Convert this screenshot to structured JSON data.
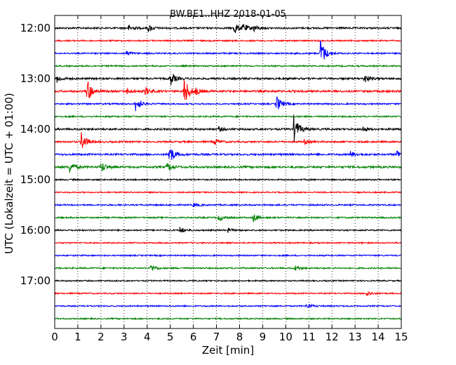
{
  "chart_data": {
    "type": "line",
    "title": "BW.BE1..HHZ 2018-01-05",
    "xlabel": "Zeit  [min]",
    "ylabel": "UTC (Lokalzeit = UTC + 01:00)",
    "xlim": [
      0,
      15
    ],
    "x_ticks": [
      "0",
      "1",
      "2",
      "3",
      "4",
      "5",
      "6",
      "7",
      "8",
      "9",
      "10",
      "11",
      "12",
      "13",
      "14",
      "15"
    ],
    "y_tick_labels": [
      "12:00",
      "13:00",
      "14:00",
      "15:00",
      "16:00",
      "17:00"
    ],
    "grid": "vertical dotted at each minute",
    "series_colors": [
      "#000000",
      "#ff0000",
      "#0000ff",
      "#008000"
    ],
    "traces": [
      {
        "start": "12:00",
        "color": "#000000",
        "noise": 1.2,
        "events": [
          {
            "t": 3.2,
            "amp": 4
          },
          {
            "t": 4.05,
            "amp": 5
          },
          {
            "t": 7.75,
            "amp": 10
          },
          {
            "t": 8.15,
            "amp": 6
          },
          {
            "t": 8.6,
            "amp": 5
          }
        ]
      },
      {
        "start": "12:15",
        "color": "#ff0000",
        "noise": 1.0,
        "events": []
      },
      {
        "start": "12:30",
        "color": "#0000ff",
        "noise": 1.0,
        "events": [
          {
            "t": 3.1,
            "amp": 3
          },
          {
            "t": 11.5,
            "amp": 22
          }
        ]
      },
      {
        "start": "12:45",
        "color": "#008000",
        "noise": 1.0,
        "events": []
      },
      {
        "start": "13:00",
        "color": "#000000",
        "noise": 1.3,
        "events": [
          {
            "t": 0.1,
            "amp": 5
          },
          {
            "t": 5.0,
            "amp": 10
          },
          {
            "t": 13.4,
            "amp": 6
          }
        ]
      },
      {
        "start": "13:15",
        "color": "#ff0000",
        "noise": 1.4,
        "events": [
          {
            "t": 1.4,
            "amp": 18
          },
          {
            "t": 3.1,
            "amp": 4
          },
          {
            "t": 3.9,
            "amp": 6
          },
          {
            "t": 5.6,
            "amp": 22
          },
          {
            "t": 6.1,
            "amp": 4
          }
        ]
      },
      {
        "start": "13:30",
        "color": "#0000ff",
        "noise": 1.0,
        "events": [
          {
            "t": 3.5,
            "amp": 11
          },
          {
            "t": 9.6,
            "amp": 12
          }
        ]
      },
      {
        "start": "13:45",
        "color": "#008000",
        "noise": 1.0,
        "events": []
      },
      {
        "start": "14:00",
        "color": "#000000",
        "noise": 1.3,
        "events": [
          {
            "t": 10.35,
            "amp": 20
          },
          {
            "t": 13.3,
            "amp": 4
          },
          {
            "t": 7.1,
            "amp": 3
          }
        ]
      },
      {
        "start": "14:15",
        "color": "#ff0000",
        "noise": 1.2,
        "events": [
          {
            "t": 1.15,
            "amp": 14
          },
          {
            "t": 6.9,
            "amp": 5
          },
          {
            "t": 10.8,
            "amp": 3
          }
        ]
      },
      {
        "start": "14:30",
        "color": "#0000ff",
        "noise": 1.3,
        "events": [
          {
            "t": 4.95,
            "amp": 15
          },
          {
            "t": 12.8,
            "amp": 4
          },
          {
            "t": 14.8,
            "amp": 7
          }
        ]
      },
      {
        "start": "14:45",
        "color": "#008000",
        "noise": 1.4,
        "events": [
          {
            "t": 0.65,
            "amp": 8
          },
          {
            "t": 2.0,
            "amp": 8
          },
          {
            "t": 4.85,
            "amp": 6
          }
        ]
      },
      {
        "start": "15:00",
        "color": "#000000",
        "noise": 1.0,
        "events": []
      },
      {
        "start": "15:15",
        "color": "#ff0000",
        "noise": 0.9,
        "events": []
      },
      {
        "start": "15:30",
        "color": "#0000ff",
        "noise": 1.0,
        "events": [
          {
            "t": 6.0,
            "amp": 3
          }
        ]
      },
      {
        "start": "15:45",
        "color": "#008000",
        "noise": 1.0,
        "events": [
          {
            "t": 7.1,
            "amp": 5
          },
          {
            "t": 8.6,
            "amp": 6
          }
        ]
      },
      {
        "start": "16:00",
        "color": "#000000",
        "noise": 1.0,
        "events": [
          {
            "t": 5.4,
            "amp": 5
          },
          {
            "t": 7.5,
            "amp": 3
          }
        ]
      },
      {
        "start": "16:15",
        "color": "#ff0000",
        "noise": 0.9,
        "events": []
      },
      {
        "start": "16:30",
        "color": "#0000ff",
        "noise": 0.9,
        "events": []
      },
      {
        "start": "16:45",
        "color": "#008000",
        "noise": 1.0,
        "events": [
          {
            "t": 4.15,
            "amp": 6
          },
          {
            "t": 10.4,
            "amp": 4
          }
        ]
      },
      {
        "start": "17:00",
        "color": "#000000",
        "noise": 0.9,
        "events": []
      },
      {
        "start": "17:15",
        "color": "#ff0000",
        "noise": 0.9,
        "events": [
          {
            "t": 13.5,
            "amp": 4
          }
        ]
      },
      {
        "start": "17:30",
        "color": "#0000ff",
        "noise": 0.9,
        "events": [
          {
            "t": 10.9,
            "amp": 4
          }
        ]
      },
      {
        "start": "17:45",
        "color": "#008000",
        "noise": 0.9,
        "events": []
      }
    ]
  }
}
